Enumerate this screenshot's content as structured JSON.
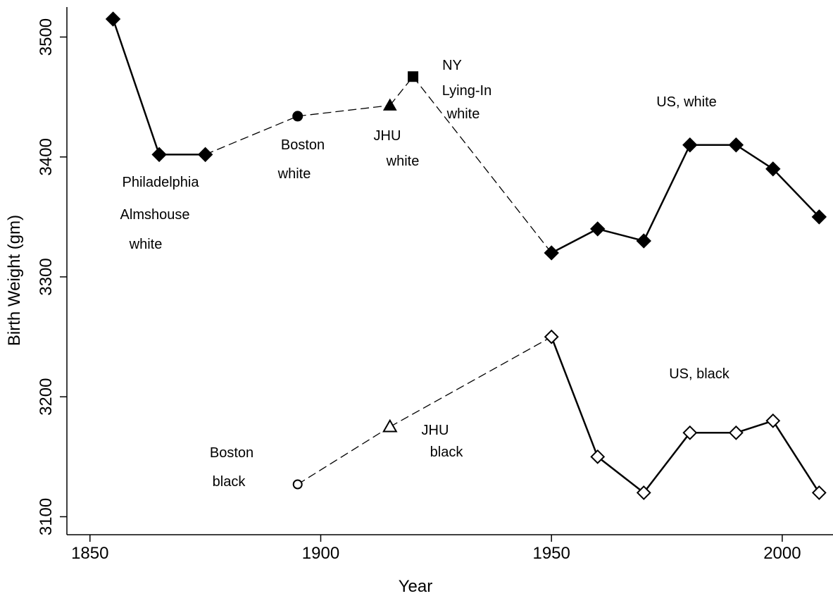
{
  "chart_data": {
    "type": "line",
    "title": "",
    "xlabel": "Year",
    "ylabel": "Birth Weight (gm)",
    "xlim": [
      1845,
      2011
    ],
    "ylim": [
      3085,
      3525
    ],
    "x_ticks": [
      1850,
      1900,
      1950,
      2000
    ],
    "y_ticks": [
      3100,
      3200,
      3300,
      3400,
      3500
    ],
    "grid": false,
    "points": [
      {
        "id": "phil-1855",
        "x": 1855,
        "y": 3515,
        "marker": "diamond",
        "fill": "filled"
      },
      {
        "id": "phil-1865",
        "x": 1865,
        "y": 3402,
        "marker": "diamond",
        "fill": "filled"
      },
      {
        "id": "phil-1875",
        "x": 1875,
        "y": 3402,
        "marker": "diamond",
        "fill": "filled"
      },
      {
        "id": "boston-white",
        "x": 1895,
        "y": 3434,
        "marker": "circle",
        "fill": "filled"
      },
      {
        "id": "jhu-white",
        "x": 1915,
        "y": 3443,
        "marker": "triangle",
        "fill": "filled"
      },
      {
        "id": "ny-white",
        "x": 1920,
        "y": 3467,
        "marker": "square",
        "fill": "filled"
      },
      {
        "id": "usw-1950",
        "x": 1950,
        "y": 3320,
        "marker": "diamond",
        "fill": "filled"
      },
      {
        "id": "usw-1960",
        "x": 1960,
        "y": 3340,
        "marker": "diamond",
        "fill": "filled"
      },
      {
        "id": "usw-1970",
        "x": 1970,
        "y": 3330,
        "marker": "diamond",
        "fill": "filled"
      },
      {
        "id": "usw-1980",
        "x": 1980,
        "y": 3410,
        "marker": "diamond",
        "fill": "filled"
      },
      {
        "id": "usw-1990",
        "x": 1990,
        "y": 3410,
        "marker": "diamond",
        "fill": "filled"
      },
      {
        "id": "usw-1998",
        "x": 1998,
        "y": 3390,
        "marker": "diamond",
        "fill": "filled"
      },
      {
        "id": "usw-2008",
        "x": 2008,
        "y": 3350,
        "marker": "diamond",
        "fill": "filled"
      },
      {
        "id": "boston-black",
        "x": 1895,
        "y": 3127,
        "marker": "circle",
        "fill": "hollow"
      },
      {
        "id": "jhu-black",
        "x": 1915,
        "y": 3175,
        "marker": "triangle",
        "fill": "hollow"
      },
      {
        "id": "usb-1950",
        "x": 1950,
        "y": 3250,
        "marker": "diamond",
        "fill": "hollow"
      },
      {
        "id": "usb-1960",
        "x": 1960,
        "y": 3150,
        "marker": "diamond",
        "fill": "hollow"
      },
      {
        "id": "usb-1970",
        "x": 1970,
        "y": 3120,
        "marker": "diamond",
        "fill": "hollow"
      },
      {
        "id": "usb-1980",
        "x": 1980,
        "y": 3170,
        "marker": "diamond",
        "fill": "hollow"
      },
      {
        "id": "usb-1990",
        "x": 1990,
        "y": 3170,
        "marker": "diamond",
        "fill": "hollow"
      },
      {
        "id": "usb-1998",
        "x": 1998,
        "y": 3180,
        "marker": "diamond",
        "fill": "hollow"
      },
      {
        "id": "usb-2008",
        "x": 2008,
        "y": 3120,
        "marker": "diamond",
        "fill": "hollow"
      }
    ],
    "segments": [
      {
        "from": "phil-1855",
        "to": "phil-1865",
        "style": "solid"
      },
      {
        "from": "phil-1865",
        "to": "phil-1875",
        "style": "solid"
      },
      {
        "from": "phil-1875",
        "to": "boston-white",
        "style": "dashed"
      },
      {
        "from": "boston-white",
        "to": "jhu-white",
        "style": "dashed"
      },
      {
        "from": "jhu-white",
        "to": "ny-white",
        "style": "dashed"
      },
      {
        "from": "ny-white",
        "to": "usw-1950",
        "style": "dashed"
      },
      {
        "from": "usw-1950",
        "to": "usw-1960",
        "style": "solid"
      },
      {
        "from": "usw-1960",
        "to": "usw-1970",
        "style": "solid"
      },
      {
        "from": "usw-1970",
        "to": "usw-1980",
        "style": "solid"
      },
      {
        "from": "usw-1980",
        "to": "usw-1990",
        "style": "solid"
      },
      {
        "from": "usw-1990",
        "to": "usw-1998",
        "style": "solid"
      },
      {
        "from": "usw-1998",
        "to": "usw-2008",
        "style": "solid"
      },
      {
        "from": "boston-black",
        "to": "jhu-black",
        "style": "dashed"
      },
      {
        "from": "jhu-black",
        "to": "usb-1950",
        "style": "dashed"
      },
      {
        "from": "usb-1950",
        "to": "usb-1960",
        "style": "solid"
      },
      {
        "from": "usb-1960",
        "to": "usb-1970",
        "style": "solid"
      },
      {
        "from": "usb-1970",
        "to": "usb-1980",
        "style": "solid"
      },
      {
        "from": "usb-1980",
        "to": "usb-1990",
        "style": "solid"
      },
      {
        "from": "usb-1990",
        "to": "usb-1998",
        "style": "solid"
      },
      {
        "from": "usb-1998",
        "to": "usb-2008",
        "style": "solid"
      }
    ],
    "annotations": [
      {
        "id": "philadelphia",
        "lines": [
          "Philadelphia",
          "Almshouse",
          "white"
        ]
      },
      {
        "id": "boston-white",
        "lines": [
          "Boston",
          "white"
        ]
      },
      {
        "id": "jhu-white",
        "lines": [
          "JHU",
          "white"
        ]
      },
      {
        "id": "ny-white",
        "lines": [
          "NY",
          "Lying-In",
          "white"
        ]
      },
      {
        "id": "us-white",
        "lines": [
          "US, white"
        ]
      },
      {
        "id": "boston-black",
        "lines": [
          "Boston",
          "black"
        ]
      },
      {
        "id": "jhu-black",
        "lines": [
          "JHU",
          "black"
        ]
      },
      {
        "id": "us-black",
        "lines": [
          "US, black"
        ]
      }
    ]
  }
}
